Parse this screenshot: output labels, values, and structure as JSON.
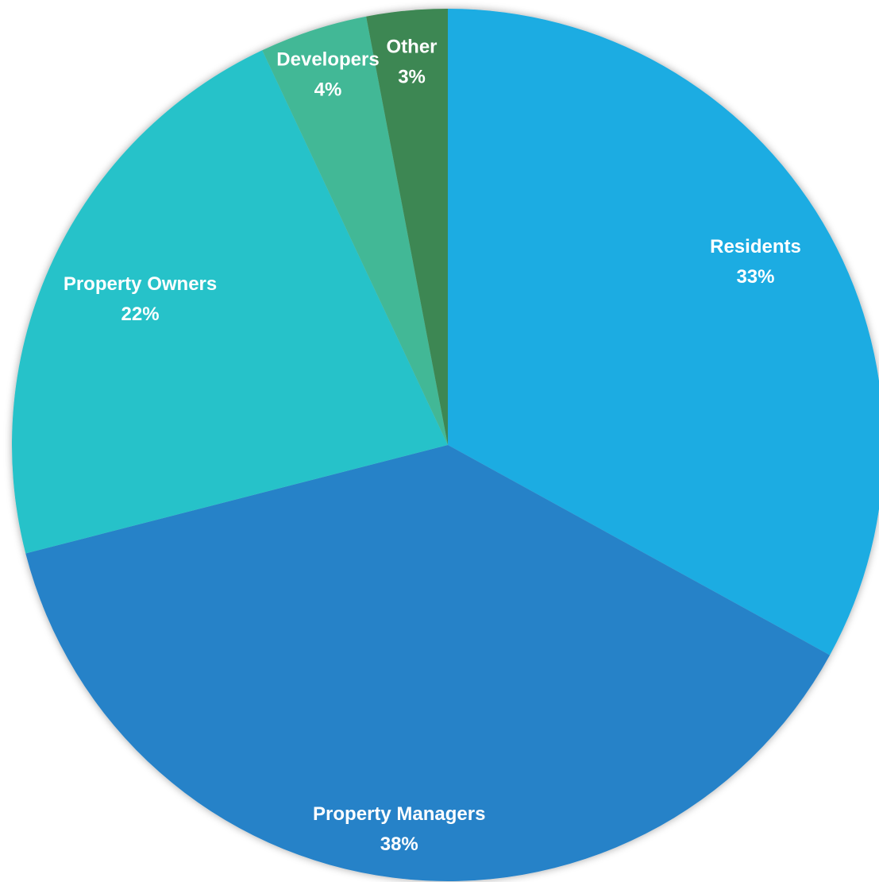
{
  "chart_data": {
    "type": "pie",
    "categories": [
      "Residents",
      "Property Managers",
      "Property Owners",
      "Developers",
      "Other"
    ],
    "values": [
      33,
      38,
      22,
      4,
      3
    ],
    "value_labels": [
      "33%",
      "38%",
      "22%",
      "4%",
      "3%"
    ],
    "colors": [
      "#1eace2",
      "#2782c8",
      "#27c2c9",
      "#42b896",
      "#3d8753"
    ]
  }
}
